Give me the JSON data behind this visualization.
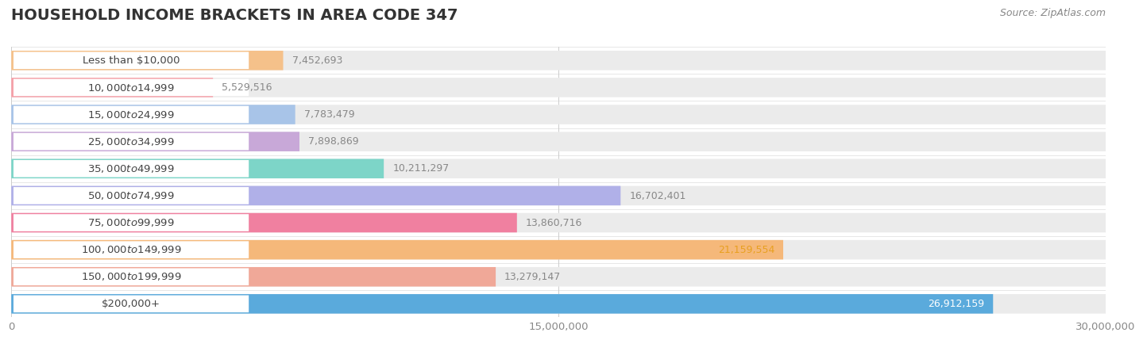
{
  "title": "HOUSEHOLD INCOME BRACKETS IN AREA CODE 347",
  "source": "Source: ZipAtlas.com",
  "categories": [
    "Less than $10,000",
    "$10,000 to $14,999",
    "$15,000 to $24,999",
    "$25,000 to $34,999",
    "$35,000 to $49,999",
    "$50,000 to $74,999",
    "$75,000 to $99,999",
    "$100,000 to $149,999",
    "$150,000 to $199,999",
    "$200,000+"
  ],
  "values": [
    7452693,
    5529516,
    7783479,
    7898869,
    10211297,
    16702401,
    13860716,
    21159554,
    13279147,
    26912159
  ],
  "bar_colors": [
    "#f5c18a",
    "#f5a0a8",
    "#a8c4e8",
    "#c8a8d8",
    "#7dd5c8",
    "#b0b0e8",
    "#f080a0",
    "#f5b87a",
    "#f0a898",
    "#5aaadc"
  ],
  "value_text_colors": [
    "#888888",
    "#888888",
    "#888888",
    "#888888",
    "#888888",
    "#888888",
    "#888888",
    "#e8a020",
    "#888888",
    "#ffffff"
  ],
  "value_inside": [
    false,
    false,
    false,
    false,
    false,
    false,
    false,
    true,
    false,
    true
  ],
  "bg_color": "#ffffff",
  "bar_bg_color": "#ebebeb",
  "xlim": [
    0,
    30000000
  ],
  "xticks": [
    0,
    15000000,
    30000000
  ],
  "xtick_labels": [
    "0",
    "15,000,000",
    "30,000,000"
  ],
  "title_fontsize": 14,
  "label_fontsize": 9.5,
  "value_fontsize": 9,
  "source_fontsize": 9,
  "cat_label_color": "#444444"
}
